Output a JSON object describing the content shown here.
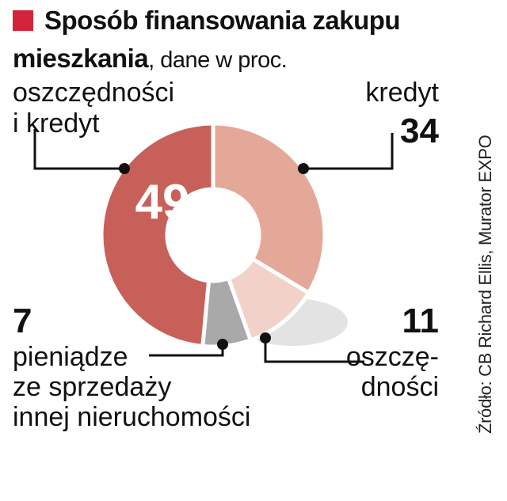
{
  "header": {
    "title": "Sposób finansowania zakupu",
    "title_line2": "mieszkania",
    "subtitle": ", dane w proc."
  },
  "source": "Źródło: CB Richard Ellis, Murator EXPO",
  "colors": {
    "marker": "#d4243c",
    "slice_savings_and_credit": "#c8605a",
    "slice_credit": "#e4a898",
    "slice_savings": "#f2d2c8",
    "slice_property_sale": "#a9a9a9",
    "shadow": "#dcdcdc"
  },
  "chart_data": {
    "type": "pie",
    "title": "Sposób finansowania zakupu mieszkania, dane w proc.",
    "slices": [
      {
        "label": "oszczędności i kredyt",
        "value": 49
      },
      {
        "label": "kredyt",
        "value": 34
      },
      {
        "label": "oszczędności",
        "value": 11
      },
      {
        "label": "pieniądze ze sprzedaży innej nieruchomości",
        "value": 7
      }
    ]
  },
  "labels": {
    "savings_and_credit": {
      "line1": "oszczędności",
      "line2": "i kredyt",
      "value": "49"
    },
    "credit": {
      "line1": "kredyt",
      "value": "34"
    },
    "savings": {
      "line1": "oszczę-",
      "line2": "dności",
      "value": "11"
    },
    "property_sale": {
      "line1": "pieniądze",
      "line2": "ze sprzedaży",
      "line3": "innej nieruchomości",
      "value": "7"
    }
  }
}
